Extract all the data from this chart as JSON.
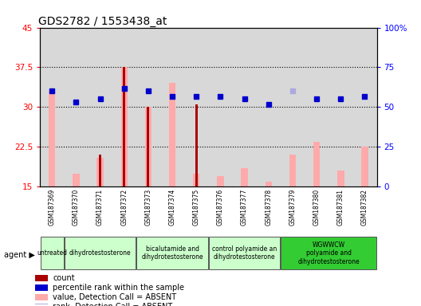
{
  "title": "GDS2782 / 1553438_at",
  "samples": [
    "GSM187369",
    "GSM187370",
    "GSM187371",
    "GSM187372",
    "GSM187373",
    "GSM187374",
    "GSM187375",
    "GSM187376",
    "GSM187377",
    "GSM187378",
    "GSM187379",
    "GSM187380",
    "GSM187381",
    "GSM187382"
  ],
  "count_values": [
    null,
    null,
    21.0,
    37.5,
    30.0,
    null,
    30.5,
    null,
    null,
    null,
    null,
    null,
    null,
    null
  ],
  "rank_values": [
    33.0,
    31.0,
    31.5,
    33.5,
    33.0,
    32.0,
    32.0,
    32.0,
    31.5,
    30.5,
    null,
    31.5,
    31.5,
    32.0
  ],
  "absent_value": [
    33.0,
    17.5,
    20.5,
    37.5,
    30.0,
    34.5,
    17.5,
    17.0,
    18.5,
    16.0,
    21.0,
    23.5,
    18.0,
    22.5
  ],
  "absent_rank": [
    null,
    null,
    null,
    null,
    null,
    null,
    null,
    null,
    null,
    null,
    33.0,
    null,
    null,
    null
  ],
  "agent_groups": [
    {
      "label": "untreated",
      "start": 0,
      "end": 1,
      "color": "#ccffcc"
    },
    {
      "label": "dihydrotestosterone",
      "start": 1,
      "end": 4,
      "color": "#ccffcc"
    },
    {
      "label": "bicalutamide and\ndihydrotestosterone",
      "start": 4,
      "end": 7,
      "color": "#ccffcc"
    },
    {
      "label": "control polyamide an\ndihydrotestosterone",
      "start": 7,
      "end": 10,
      "color": "#ccffcc"
    },
    {
      "label": "WGWWCW\npolyamide and\ndihydrotestosterone",
      "start": 10,
      "end": 14,
      "color": "#33cc33"
    }
  ],
  "ylim_left": [
    15,
    45
  ],
  "ylim_right": [
    0,
    100
  ],
  "yticks_left": [
    15,
    22.5,
    30,
    37.5,
    45
  ],
  "yticks_right": [
    0,
    25,
    50,
    75,
    100
  ],
  "ytick_labels_left": [
    "15",
    "22.5",
    "30",
    "37.5",
    "45"
  ],
  "ytick_labels_right": [
    "0",
    "25",
    "50",
    "75",
    "100%"
  ],
  "count_color": "#aa0000",
  "absent_value_color": "#ffaaaa",
  "rank_color": "#0000cc",
  "absent_rank_color": "#aaaadd",
  "col_bg_color": "#d8d8d8",
  "legend_items": [
    {
      "color": "#aa0000",
      "marker": "s",
      "label": "count"
    },
    {
      "color": "#0000cc",
      "marker": "s",
      "label": "percentile rank within the sample"
    },
    {
      "color": "#ffaaaa",
      "marker": "s",
      "label": "value, Detection Call = ABSENT"
    },
    {
      "color": "#aaaadd",
      "marker": "s",
      "label": "rank, Detection Call = ABSENT"
    }
  ]
}
